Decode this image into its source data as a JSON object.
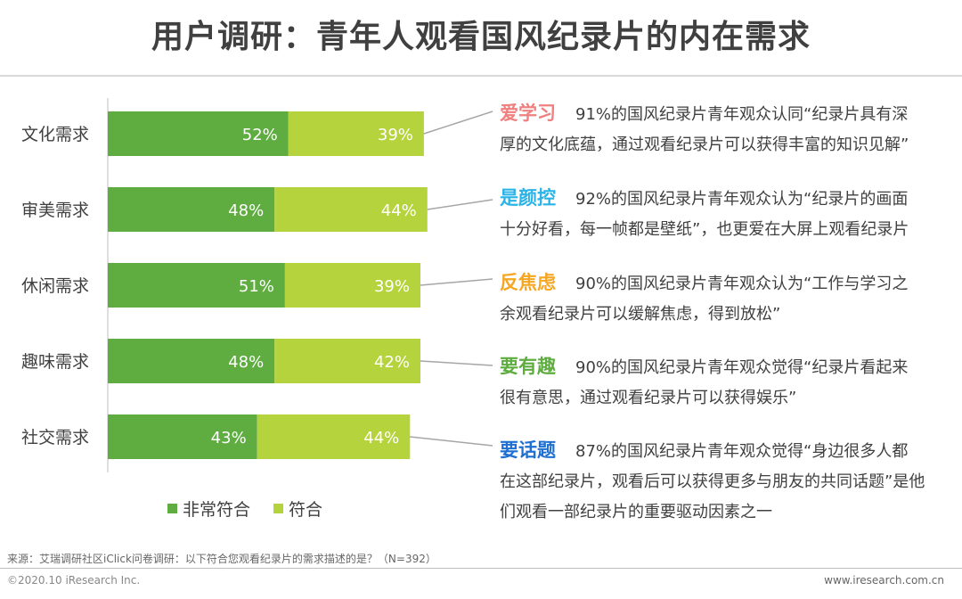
{
  "title": "用户调研：青年人观看国风纪录片的内在需求",
  "chart_data": {
    "type": "bar",
    "orientation": "horizontal",
    "stacked": true,
    "categories": [
      "文化需求",
      "审美需求",
      "休闲需求",
      "趣味需求",
      "社交需求"
    ],
    "series": [
      {
        "name": "非常符合",
        "values": [
          52,
          48,
          51,
          48,
          43
        ],
        "labels": [
          "52%",
          "48%",
          "51%",
          "48%",
          "43%"
        ],
        "color": "#5fad41"
      },
      {
        "name": "符合",
        "values": [
          39,
          44,
          39,
          42,
          44
        ],
        "labels": [
          "39%",
          "44%",
          "39%",
          "42%",
          "44%"
        ],
        "color": "#b5d33d"
      }
    ],
    "xlim": [
      0,
      100
    ],
    "grid": false,
    "legend_position": "bottom-left"
  },
  "callouts": [
    {
      "keyword": "爱学习",
      "keyword_color": "#f07f7f",
      "line1": "91%的国风纪录片青年观众认同“纪录片具有深",
      "line2": "厚的文化底蕴，通过观看纪录片可以获得丰富的知识见解”"
    },
    {
      "keyword": "是颜控",
      "keyword_color": "#2ab3e6",
      "line1": "92%的国风纪录片青年观众认为“纪录片的画面",
      "line2": "十分好看，每一帧都是壁纸”，也更爱在大屏上观看纪录片"
    },
    {
      "keyword": "反焦虑",
      "keyword_color": "#f5a623",
      "line1": "90%的国风纪录片青年观众认为“工作与学习之",
      "line2": "余观看纪录片可以缓解焦虑，得到放松”"
    },
    {
      "keyword": "要有趣",
      "keyword_color": "#5fad41",
      "line1": "90%的国风纪录片青年观众觉得“纪录片看起来",
      "line2": "很有意思，通过观看纪录片可以获得娱乐”"
    },
    {
      "keyword": "要话题",
      "keyword_color": "#1f6fd1",
      "line1": "87%的国风纪录片青年观众觉得“身边很多人都",
      "line2": "在这部纪录片，观看后可以获得更多与朋友的共同话题”是他",
      "line3": "们观看一部纪录片的重要驱动因素之一"
    }
  ],
  "footer": {
    "source": "来源：艾瑞调研社区iClick问卷调研：以下符合您观看纪录片的需求描述的是？（N=392）",
    "copyright": "©2020.10 iResearch Inc.",
    "website": "www.iresearch.com.cn"
  }
}
